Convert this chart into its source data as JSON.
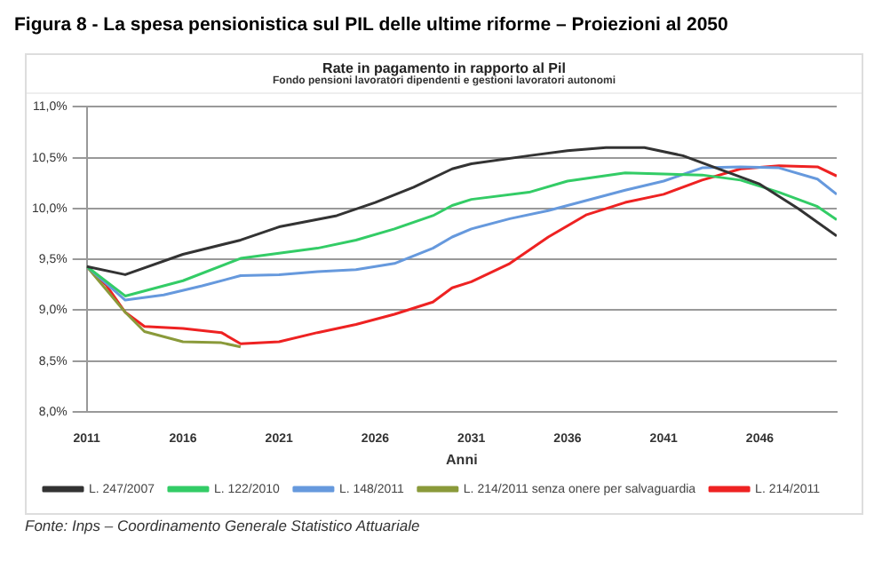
{
  "chart_data": {
    "type": "line",
    "title": "Figura 8 - La spesa pensionistica sul PIL delle ultime riforme – Proiezioni al 2050",
    "subtitle": "Rate in pagamento  in rapporto al Pil",
    "xlabel": "Anni",
    "annotations": [
      "Fondo pensioni lavoratori dipendenti e gestioni lavoratori autonomi",
      "Fonte: Inps – Coordinamento Generale Statistico Attuariale"
    ],
    "xlim": [
      2011,
      2050
    ],
    "xticks": [
      2011,
      2016,
      2021,
      2026,
      2031,
      2036,
      2041,
      2046
    ],
    "ylim": [
      8,
      11
    ],
    "yticks": [
      {
        "value": 8,
        "label": "8,0%"
      },
      {
        "value": 8.5,
        "label": "8,5%"
      },
      {
        "value": 9,
        "label": "9,0%"
      },
      {
        "value": 9.5,
        "label": "9,5%"
      },
      {
        "value": 10,
        "label": "10,0%"
      },
      {
        "value": 10.5,
        "label": "10,5%"
      },
      {
        "value": 11,
        "label": "11,0%"
      }
    ],
    "grid": "y",
    "legend": "bottom",
    "series": [
      {
        "name": "L. 247/2007",
        "color": "#333333",
        "x": [
          2011,
          2013,
          2016,
          2019,
          2021,
          2024,
          2026,
          2028,
          2030,
          2031,
          2034,
          2036,
          2038,
          2040,
          2042,
          2044,
          2046,
          2048,
          2050
        ],
        "values": [
          9.43,
          9.35,
          9.55,
          9.69,
          9.82,
          9.93,
          10.06,
          10.21,
          10.39,
          10.44,
          10.52,
          10.57,
          10.6,
          10.6,
          10.52,
          10.38,
          10.24,
          10.0,
          9.73
        ]
      },
      {
        "name": "L. 122/2010",
        "color": "#33cc66",
        "x": [
          2011,
          2013,
          2016,
          2019,
          2021,
          2023,
          2025,
          2027,
          2029,
          2030,
          2031,
          2034,
          2036,
          2039,
          2041,
          2043,
          2045,
          2047,
          2049,
          2050
        ],
        "values": [
          9.43,
          9.14,
          9.29,
          9.51,
          9.56,
          9.61,
          9.69,
          9.8,
          9.93,
          10.03,
          10.09,
          10.16,
          10.27,
          10.35,
          10.34,
          10.33,
          10.28,
          10.16,
          10.02,
          9.89
        ]
      },
      {
        "name": "L. 148/2011",
        "color": "#6699dd",
        "x": [
          2011,
          2013,
          2015,
          2017,
          2019,
          2021,
          2023,
          2025,
          2027,
          2029,
          2030,
          2031,
          2033,
          2035,
          2037,
          2039,
          2041,
          2043,
          2045,
          2047,
          2049,
          2050
        ],
        "values": [
          9.43,
          9.1,
          9.15,
          9.24,
          9.34,
          9.35,
          9.38,
          9.4,
          9.46,
          9.61,
          9.72,
          9.8,
          9.9,
          9.98,
          10.08,
          10.18,
          10.27,
          10.4,
          10.41,
          10.4,
          10.29,
          10.14
        ]
      },
      {
        "name": "L. 214/2011 senza onere per salvaguardia",
        "color": "#8a9a3a",
        "x": [
          2011,
          2013,
          2014,
          2016,
          2018,
          2019
        ],
        "values": [
          9.43,
          8.98,
          8.79,
          8.69,
          8.68,
          8.64
        ]
      },
      {
        "name": "L. 214/2011",
        "color": "#ee2222",
        "x": [
          2011,
          2012,
          2013,
          2014,
          2016,
          2018,
          2019,
          2021,
          2023,
          2025,
          2027,
          2029,
          2030,
          2031,
          2033,
          2035,
          2037,
          2039,
          2041,
          2043,
          2045,
          2047,
          2049,
          2050
        ],
        "values": [
          9.43,
          9.25,
          8.98,
          8.84,
          8.82,
          8.78,
          8.67,
          8.69,
          8.78,
          8.86,
          8.96,
          9.08,
          9.22,
          9.28,
          9.46,
          9.72,
          9.94,
          10.06,
          10.14,
          10.28,
          10.39,
          10.42,
          10.41,
          10.32
        ]
      }
    ]
  }
}
